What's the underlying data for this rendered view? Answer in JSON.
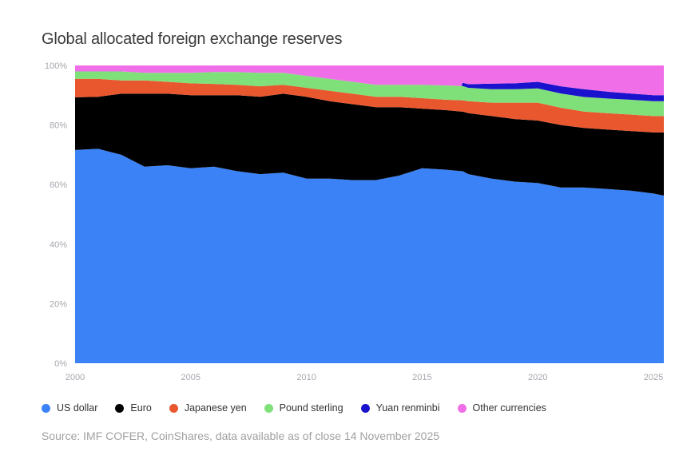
{
  "chart_data": {
    "type": "area",
    "stacked": true,
    "title": "Global allocated foreign exchange reserves",
    "source": "Source: IMF COFER, CoinShares, data available as of close 14 November 2025",
    "xlim": [
      2000,
      2025.45
    ],
    "ylim": [
      0,
      100
    ],
    "x_ticks": [
      "2000",
      "2005",
      "2010",
      "2015",
      "2020",
      "2025"
    ],
    "y_ticks": [
      "0%",
      "20%",
      "40%",
      "60%",
      "80%",
      "100%"
    ],
    "legend_position": "bottom",
    "grid": false,
    "x": [
      2000,
      2001,
      2002,
      2003,
      2004,
      2005,
      2006,
      2007,
      2008,
      2009,
      2010,
      2011,
      2012,
      2013,
      2014,
      2015,
      2016,
      2016.7,
      2016.75,
      2017,
      2018,
      2019,
      2020,
      2021,
      2022,
      2023,
      2024,
      2025,
      2025.45
    ],
    "series": [
      {
        "name": "US dollar",
        "color": "#3b82f6",
        "values": [
          71.6,
          72.0,
          70.0,
          66.0,
          66.5,
          65.5,
          66.0,
          64.5,
          63.5,
          64.0,
          62.0,
          62.0,
          61.5,
          61.5,
          63.0,
          65.5,
          65.0,
          64.5,
          64.5,
          63.5,
          62.0,
          61.0,
          60.5,
          59.0,
          59.0,
          58.5,
          58.0,
          57.0,
          56.3
        ]
      },
      {
        "name": "Euro",
        "color": "#000000",
        "values": [
          17.7,
          17.5,
          20.5,
          24.5,
          24.0,
          24.5,
          24.0,
          25.5,
          26.0,
          26.5,
          27.5,
          26.0,
          25.5,
          24.5,
          23.0,
          20.0,
          20.0,
          20.0,
          20.0,
          20.5,
          21.0,
          21.0,
          21.0,
          21.0,
          20.0,
          20.0,
          20.0,
          20.5,
          21.2
        ]
      },
      {
        "name": "Japanese yen",
        "color": "#e9572f",
        "values": [
          6.2,
          6.0,
          4.5,
          4.5,
          4.0,
          4.0,
          3.8,
          3.5,
          3.5,
          3.0,
          3.0,
          3.5,
          3.5,
          3.5,
          3.5,
          3.5,
          3.5,
          3.8,
          3.8,
          4.0,
          4.5,
          5.5,
          6.0,
          5.8,
          5.5,
          5.5,
          5.5,
          5.5,
          5.5
        ]
      },
      {
        "name": "Pound sterling",
        "color": "#7fe07a",
        "values": [
          2.5,
          2.5,
          3.0,
          2.5,
          3.0,
          3.5,
          4.0,
          4.3,
          4.5,
          4.0,
          4.0,
          4.0,
          4.0,
          4.0,
          4.0,
          4.5,
          4.8,
          4.8,
          4.8,
          4.5,
          4.5,
          4.5,
          4.8,
          4.8,
          4.9,
          4.9,
          5.0,
          5.0,
          5.0
        ]
      },
      {
        "name": "Yuan renminbi",
        "color": "#1a12cc",
        "values": [
          0,
          0,
          0,
          0,
          0,
          0,
          0,
          0,
          0,
          0,
          0,
          0,
          0,
          0,
          0,
          0,
          0,
          0,
          1.1,
          1.2,
          1.9,
          2.0,
          2.2,
          2.4,
          2.6,
          2.3,
          2.1,
          2.0,
          2.0
        ]
      },
      {
        "name": "Other currencies",
        "color": "#f06fe8",
        "values": [
          2.0,
          2.0,
          2.0,
          2.5,
          2.5,
          2.5,
          2.2,
          2.2,
          2.5,
          2.5,
          3.5,
          4.5,
          5.5,
          6.5,
          6.5,
          6.5,
          6.7,
          6.9,
          5.8,
          6.3,
          6.1,
          6.0,
          5.5,
          7.0,
          8.0,
          8.8,
          9.4,
          10.0,
          10.0
        ]
      }
    ]
  }
}
